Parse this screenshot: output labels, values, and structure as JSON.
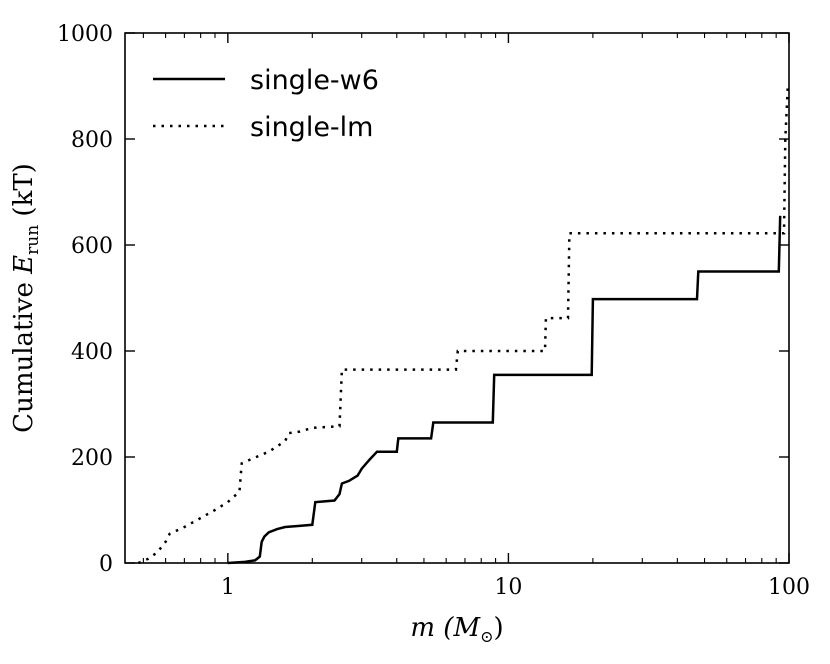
{
  "chart_data": {
    "type": "line",
    "xscale": "log",
    "xlim": [
      0.43,
      100
    ],
    "ylim": [
      0,
      1000
    ],
    "xticks": [
      {
        "value": 1,
        "label": "1"
      },
      {
        "value": 10,
        "label": "10"
      },
      {
        "value": 100,
        "label": "100"
      }
    ],
    "yticks": [
      {
        "value": 0,
        "label": "0"
      },
      {
        "value": 200,
        "label": "200"
      },
      {
        "value": 400,
        "label": "400"
      },
      {
        "value": 600,
        "label": "600"
      },
      {
        "value": 800,
        "label": "800"
      },
      {
        "value": 1000,
        "label": "1000"
      }
    ],
    "xlabel": {
      "italic": "m",
      "rest": " (M",
      "sub": "⊙",
      "close": ")"
    },
    "ylabel": {
      "text": "Cumulative ",
      "italic": "E",
      "sub": "run",
      "rest": " (kT)"
    },
    "legend_position": "top-left",
    "series": [
      {
        "name": "single-w6",
        "style": "solid",
        "x": [
          1.0,
          1.15,
          1.25,
          1.3,
          1.32,
          1.35,
          1.4,
          1.5,
          1.6,
          1.8,
          2.0,
          2.05,
          2.4,
          2.5,
          2.55,
          2.7,
          2.9,
          3.0,
          3.2,
          3.4,
          4.0,
          4.05,
          5.3,
          5.4,
          8.8,
          8.9,
          19.8,
          20.0,
          47.0,
          47.5,
          92.0,
          93.0
        ],
        "y": [
          0,
          2,
          5,
          12,
          40,
          50,
          58,
          64,
          68,
          70,
          72,
          115,
          118,
          130,
          150,
          155,
          165,
          178,
          195,
          210,
          210,
          235,
          235,
          265,
          265,
          355,
          355,
          498,
          498,
          550,
          550,
          655
        ]
      },
      {
        "name": "single-lm",
        "style": "dotted",
        "x": [
          0.48,
          0.52,
          0.56,
          0.6,
          0.62,
          0.7,
          0.8,
          0.9,
          1.0,
          1.05,
          1.1,
          1.12,
          1.2,
          1.4,
          1.6,
          1.65,
          1.8,
          2.0,
          2.5,
          2.55,
          6.5,
          6.6,
          13.5,
          13.6,
          16.3,
          16.5,
          96.0,
          97.0,
          99.0
        ],
        "y": [
          0,
          8,
          20,
          40,
          55,
          68,
          85,
          100,
          115,
          125,
          135,
          188,
          195,
          210,
          230,
          245,
          248,
          255,
          258,
          365,
          365,
          400,
          400,
          462,
          462,
          622,
          622,
          800,
          900
        ]
      }
    ]
  }
}
